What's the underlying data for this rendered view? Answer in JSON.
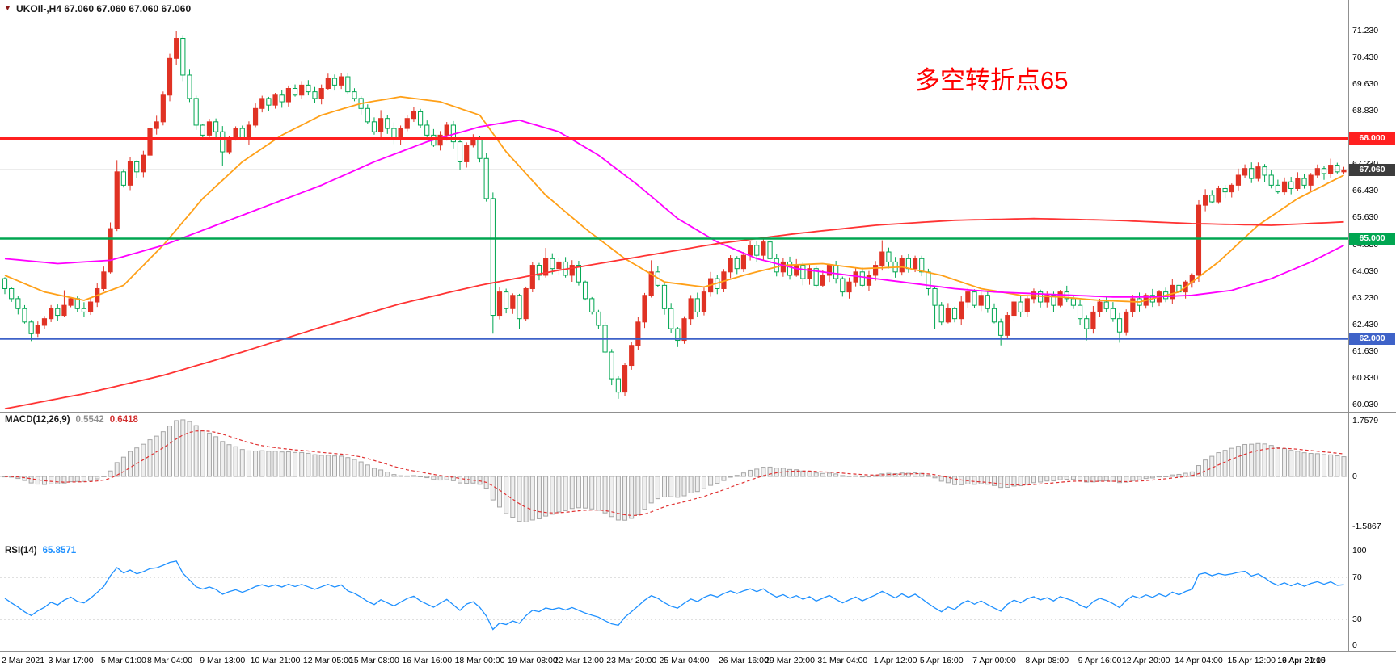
{
  "header": {
    "marker": "▼",
    "title": "UKOIl-,H4  67.060 67.060 67.060 67.060"
  },
  "annotation": {
    "text": "多空转折点65",
    "color": "#FF0000"
  },
  "colors": {
    "up_candle": "#E03224",
    "down_candle": "#00A651",
    "ma_fast": "#FFA018",
    "ma_mid": "#FF00FF",
    "ma_slow": "#FF3333",
    "level_red": "#FF2020",
    "level_green": "#00A651",
    "level_blue": "#3E62C8",
    "price_badge": "#3C3C3C",
    "macd_hist_fill": "#EFEFEF",
    "macd_hist_stroke": "#A6A6A6",
    "macd_signal": "#E03131",
    "rsi_line": "#1E90FF",
    "separator": "#909090",
    "dashed_level": "#C0C0C0",
    "price_line": "#666666"
  },
  "chart_data": {
    "type": "candlestick",
    "symbol": "UKOIl-",
    "timeframe": "H4",
    "ohlc_current": {
      "open": "67.060",
      "high": "67.060",
      "low": "67.060",
      "close": "67.060"
    },
    "y_axis": {
      "ticks": [
        "71.230",
        "70.430",
        "69.630",
        "68.830",
        "67.230",
        "66.430",
        "65.630",
        "64.830",
        "64.030",
        "63.230",
        "62.430",
        "61.630",
        "60.830",
        "60.030"
      ]
    },
    "x_axis": {
      "labels": [
        [
          "2 Mar 2021",
          0
        ],
        [
          "3 Mar 17:00",
          10
        ],
        [
          "5 Mar 01:00",
          18
        ],
        [
          "8 Mar 04:00",
          25
        ],
        [
          "9 Mar 13:00",
          33
        ],
        [
          "10 Mar 21:00",
          41
        ],
        [
          "12 Mar 05:00",
          49
        ],
        [
          "15 Mar 08:00",
          56
        ],
        [
          "16 Mar 16:00",
          64
        ],
        [
          "18 Mar 00:00",
          72
        ],
        [
          "19 Mar 08:00",
          80
        ],
        [
          "22 Mar 12:00",
          87
        ],
        [
          "23 Mar 20:00",
          95
        ],
        [
          "25 Mar 04:00",
          103
        ],
        [
          "26 Mar 16:00",
          112
        ],
        [
          "29 Mar 20:00",
          119
        ],
        [
          "31 Mar 04:00",
          127
        ],
        [
          "1 Apr 12:00",
          135
        ],
        [
          "5 Apr 16:00",
          142
        ],
        [
          "7 Apr 00:00",
          150
        ],
        [
          "8 Apr 08:00",
          158
        ],
        [
          "9 Apr 16:00",
          166
        ],
        [
          "12 Apr 20:00",
          173
        ],
        [
          "14 Apr 04:00",
          181
        ],
        [
          "15 Apr 12:00",
          189
        ],
        [
          "16 Apr 20:00",
          197
        ],
        [
          "19 Apr 21:15",
          203
        ]
      ]
    },
    "levels": [
      {
        "value": 68.0,
        "label": "68.000",
        "color": "#FF2020",
        "width": 3
      },
      {
        "value": 65.0,
        "label": "65.000",
        "color": "#00A651",
        "width": 2.5
      },
      {
        "value": 62.0,
        "label": "62.000",
        "color": "#3E62C8",
        "width": 2.5
      }
    ],
    "price_line": {
      "value": 67.06,
      "label": "67.060"
    },
    "candles": {
      "first_open": 63.8,
      "closes": [
        63.5,
        63.2,
        62.9,
        62.5,
        62.15,
        62.4,
        62.6,
        62.9,
        62.7,
        63.0,
        63.2,
        62.9,
        62.8,
        63.1,
        63.5,
        64.0,
        65.3,
        67.0,
        66.6,
        67.3,
        67.0,
        67.5,
        68.3,
        68.5,
        69.3,
        70.4,
        71.0,
        69.9,
        69.2,
        68.4,
        68.1,
        68.5,
        68.2,
        67.6,
        68.0,
        68.3,
        68.0,
        68.4,
        68.9,
        69.2,
        69.0,
        69.3,
        69.1,
        69.5,
        69.3,
        69.6,
        69.4,
        69.2,
        69.5,
        69.8,
        69.6,
        69.85,
        69.4,
        69.2,
        68.9,
        68.5,
        68.2,
        68.6,
        68.3,
        68.0,
        68.3,
        68.6,
        68.8,
        68.4,
        68.1,
        67.8,
        68.1,
        68.4,
        67.9,
        67.3,
        67.8,
        68.0,
        67.4,
        66.2,
        62.7,
        63.4,
        62.9,
        63.3,
        62.6,
        63.5,
        64.2,
        63.9,
        64.4,
        64.1,
        64.3,
        63.9,
        64.2,
        63.7,
        63.2,
        62.8,
        62.4,
        61.6,
        60.8,
        60.4,
        61.2,
        61.8,
        62.5,
        63.3,
        64.0,
        63.6,
        62.9,
        62.3,
        61.95,
        62.6,
        63.2,
        62.8,
        63.4,
        63.8,
        63.5,
        64.0,
        64.4,
        64.1,
        64.5,
        64.8,
        64.5,
        64.9,
        64.4,
        64.0,
        64.3,
        63.9,
        64.2,
        63.8,
        64.1,
        63.6,
        63.9,
        64.2,
        63.8,
        63.4,
        63.7,
        64.0,
        63.6,
        63.9,
        64.2,
        64.6,
        64.3,
        64.0,
        64.4,
        64.1,
        64.4,
        64.0,
        63.5,
        63.0,
        62.5,
        62.9,
        62.6,
        63.1,
        63.4,
        63.0,
        63.3,
        62.9,
        62.5,
        62.1,
        62.7,
        63.1,
        62.8,
        63.2,
        63.4,
        63.1,
        63.3,
        63.0,
        63.4,
        63.2,
        63.0,
        62.6,
        62.3,
        62.8,
        63.1,
        62.9,
        62.6,
        62.2,
        62.8,
        63.2,
        63.0,
        63.3,
        63.1,
        63.4,
        63.2,
        63.6,
        63.4,
        63.7,
        63.9,
        66.0,
        66.3,
        66.1,
        66.5,
        66.4,
        66.6,
        66.9,
        67.1,
        66.8,
        67.15,
        66.9,
        66.6,
        66.4,
        66.7,
        66.5,
        66.8,
        66.6,
        66.9,
        67.1,
        66.95,
        67.2,
        67.0,
        67.06
      ],
      "extremes": [
        [
          4,
          "l",
          61.93
        ],
        [
          9,
          "h",
          63.45
        ],
        [
          17,
          "h",
          67.35
        ],
        [
          26,
          "h",
          71.23
        ],
        [
          27,
          "h",
          71.1
        ],
        [
          33,
          "l",
          67.18
        ],
        [
          38,
          "h",
          69.05
        ],
        [
          45,
          "h",
          69.72
        ],
        [
          51,
          "h",
          69.95
        ],
        [
          57,
          "h",
          68.85
        ],
        [
          69,
          "l",
          67.05
        ],
        [
          74,
          "l",
          62.15
        ],
        [
          78,
          "l",
          62.28
        ],
        [
          82,
          "h",
          64.72
        ],
        [
          93,
          "l",
          60.2
        ],
        [
          98,
          "h",
          64.35
        ],
        [
          102,
          "l",
          61.75
        ],
        [
          107,
          "h",
          64.0
        ],
        [
          115,
          "h",
          65.05
        ],
        [
          133,
          "h",
          64.95
        ],
        [
          141,
          "l",
          62.3
        ],
        [
          151,
          "l",
          61.8
        ],
        [
          164,
          "l",
          61.95
        ],
        [
          169,
          "l",
          61.88
        ],
        [
          181,
          "h",
          66.15
        ],
        [
          190,
          "h",
          67.28
        ],
        [
          199,
          "h",
          67.22
        ],
        [
          203,
          "h",
          67.15
        ]
      ]
    },
    "moving_averages": [
      {
        "name": "ma-fast-orange",
        "color": "#FFA018",
        "points": [
          [
            0,
            63.9
          ],
          [
            6,
            63.4
          ],
          [
            12,
            63.15
          ],
          [
            18,
            63.6
          ],
          [
            24,
            64.8
          ],
          [
            30,
            66.2
          ],
          [
            36,
            67.3
          ],
          [
            42,
            68.1
          ],
          [
            48,
            68.7
          ],
          [
            54,
            69.05
          ],
          [
            60,
            69.25
          ],
          [
            66,
            69.1
          ],
          [
            72,
            68.7
          ],
          [
            76,
            67.6
          ],
          [
            82,
            66.3
          ],
          [
            88,
            65.3
          ],
          [
            94,
            64.4
          ],
          [
            100,
            63.7
          ],
          [
            106,
            63.55
          ],
          [
            112,
            63.9
          ],
          [
            118,
            64.2
          ],
          [
            124,
            64.25
          ],
          [
            130,
            64.1
          ],
          [
            136,
            64.15
          ],
          [
            142,
            63.9
          ],
          [
            148,
            63.5
          ],
          [
            154,
            63.3
          ],
          [
            160,
            63.25
          ],
          [
            166,
            63.15
          ],
          [
            172,
            63.1
          ],
          [
            178,
            63.4
          ],
          [
            184,
            64.3
          ],
          [
            190,
            65.4
          ],
          [
            196,
            66.2
          ],
          [
            203,
            66.9
          ]
        ]
      },
      {
        "name": "ma-mid-magenta",
        "color": "#FF00FF",
        "points": [
          [
            0,
            64.4
          ],
          [
            8,
            64.25
          ],
          [
            16,
            64.35
          ],
          [
            24,
            64.8
          ],
          [
            32,
            65.4
          ],
          [
            40,
            66.0
          ],
          [
            48,
            66.6
          ],
          [
            56,
            67.3
          ],
          [
            64,
            67.9
          ],
          [
            72,
            68.35
          ],
          [
            78,
            68.55
          ],
          [
            84,
            68.2
          ],
          [
            90,
            67.5
          ],
          [
            96,
            66.6
          ],
          [
            102,
            65.6
          ],
          [
            108,
            64.9
          ],
          [
            114,
            64.4
          ],
          [
            120,
            64.1
          ],
          [
            126,
            63.95
          ],
          [
            132,
            63.8
          ],
          [
            138,
            63.65
          ],
          [
            144,
            63.5
          ],
          [
            150,
            63.4
          ],
          [
            156,
            63.35
          ],
          [
            162,
            63.3
          ],
          [
            168,
            63.25
          ],
          [
            174,
            63.25
          ],
          [
            180,
            63.3
          ],
          [
            186,
            63.45
          ],
          [
            192,
            63.8
          ],
          [
            198,
            64.3
          ],
          [
            203,
            64.8
          ]
        ]
      },
      {
        "name": "ma-slow-red",
        "color": "#FF3333",
        "points": [
          [
            0,
            59.9
          ],
          [
            12,
            60.35
          ],
          [
            24,
            60.9
          ],
          [
            36,
            61.6
          ],
          [
            48,
            62.35
          ],
          [
            60,
            63.05
          ],
          [
            72,
            63.6
          ],
          [
            84,
            64.05
          ],
          [
            96,
            64.45
          ],
          [
            108,
            64.85
          ],
          [
            120,
            65.15
          ],
          [
            132,
            65.4
          ],
          [
            144,
            65.55
          ],
          [
            156,
            65.6
          ],
          [
            168,
            65.55
          ],
          [
            180,
            65.45
          ],
          [
            192,
            65.4
          ],
          [
            203,
            65.5
          ]
        ]
      }
    ],
    "indicators": {
      "macd": {
        "label": "MACD(12,26,9)",
        "values": [
          "0.5542",
          "0.6418"
        ],
        "params": [
          12,
          26,
          9
        ],
        "scale_labels": [
          [
            "1.7579",
            1.7579
          ],
          [
            "0",
            0
          ],
          [
            "-1.5867",
            -1.5867
          ]
        ]
      },
      "rsi": {
        "label": "RSI(14)",
        "value": "65.8571",
        "period": 14,
        "scale_labels": [
          [
            "100",
            100
          ],
          [
            "70",
            70
          ],
          [
            "30",
            30
          ],
          [
            "0",
            0
          ]
        ],
        "levels": [
          70,
          30
        ]
      }
    }
  }
}
